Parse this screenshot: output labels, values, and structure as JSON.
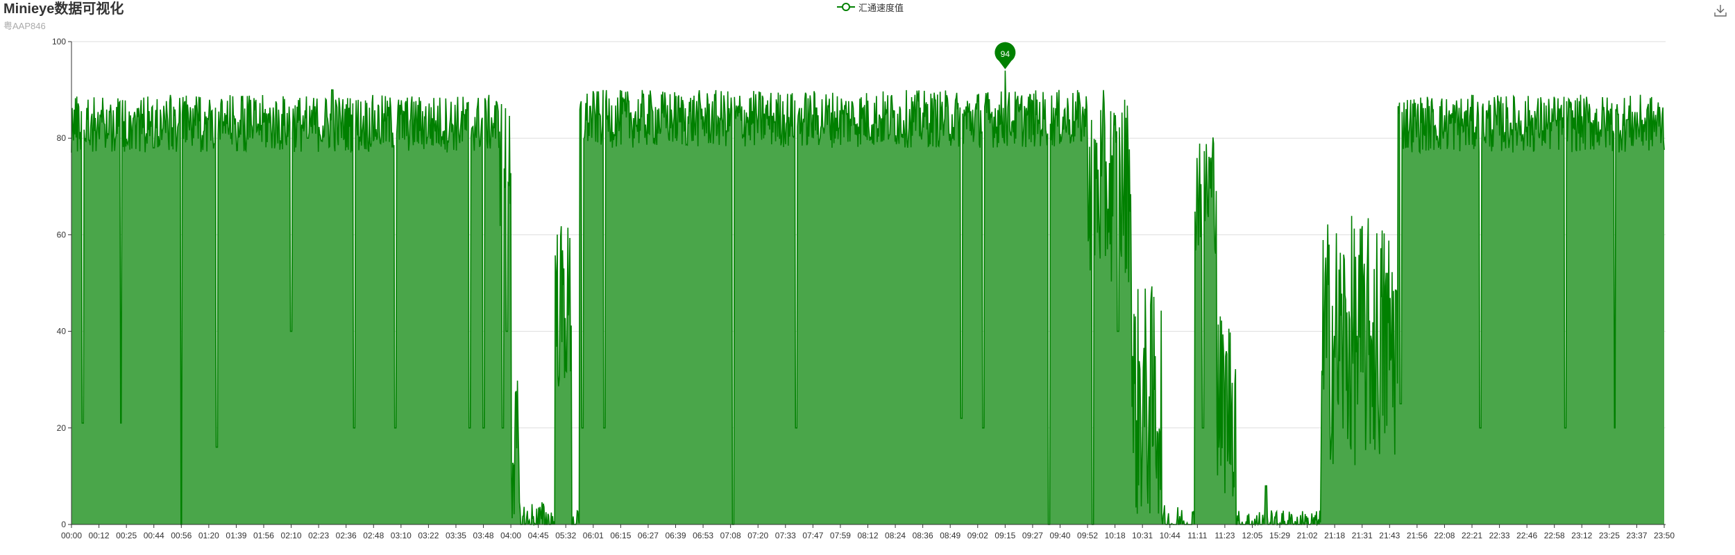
{
  "title": "Minieye数据可视化",
  "subtitle": "粤AAP846",
  "colors": {
    "line": "#008000",
    "area": "#4aa64a",
    "grid": "#dddddd",
    "axis": "#333333"
  },
  "toolbox": {
    "icon": "download-icon"
  },
  "chart_data": {
    "type": "area",
    "title": "Minieye数据可视化",
    "subtitle": "粤AAP846",
    "legend": {
      "items": [
        "汇通速度值"
      ],
      "placement": "top-center"
    },
    "xlabel": "",
    "ylabel": "",
    "ylim": [
      0,
      100
    ],
    "yticks": [
      0,
      20,
      40,
      60,
      80,
      100
    ],
    "grid": true,
    "xticks": [
      "00:00",
      "00:12",
      "00:25",
      "00:44",
      "00:56",
      "01:20",
      "01:39",
      "01:56",
      "02:10",
      "02:23",
      "02:36",
      "02:48",
      "03:10",
      "03:22",
      "03:35",
      "03:48",
      "04:00",
      "04:45",
      "05:32",
      "06:01",
      "06:15",
      "06:27",
      "06:39",
      "06:53",
      "07:08",
      "07:20",
      "07:33",
      "07:47",
      "07:59",
      "08:12",
      "08:24",
      "08:36",
      "08:49",
      "09:02",
      "09:15",
      "09:27",
      "09:40",
      "09:52",
      "10:18",
      "10:31",
      "10:44",
      "11:11",
      "11:23",
      "12:05",
      "15:29",
      "21:02",
      "21:18",
      "21:31",
      "21:43",
      "21:56",
      "22:08",
      "22:21",
      "22:33",
      "22:46",
      "22:58",
      "23:12",
      "23:25",
      "23:37",
      "23:50"
    ],
    "mark_point": {
      "label": "94",
      "value": 94,
      "tick_index": 34
    },
    "series": [
      {
        "name": "汇通速度值",
        "segments": [
          {
            "from": 0,
            "to": 15.6,
            "level": 83,
            "spread": 6,
            "dips": [
              [
                0.4,
                21
              ],
              [
                1.8,
                21
              ],
              [
                3.0,
                78
              ],
              [
                4.0,
                0
              ],
              [
                5.3,
                16
              ],
              [
                8.0,
                40
              ],
              [
                8.6,
                80
              ],
              [
                9.5,
                90
              ],
              [
                10.3,
                20
              ],
              [
                11.8,
                20
              ],
              [
                14.5,
                20
              ],
              [
                15.0,
                20
              ]
            ]
          },
          {
            "from": 15.6,
            "to": 16.0,
            "level": 75,
            "spread": 14,
            "dips": [
              [
                15.7,
                20
              ],
              [
                15.85,
                40
              ]
            ]
          },
          {
            "from": 16.0,
            "to": 16.3,
            "level": 15,
            "spread": 15
          },
          {
            "from": 16.3,
            "to": 17.6,
            "level": 0,
            "spread": 5
          },
          {
            "from": 17.6,
            "to": 18.2,
            "level": 45,
            "spread": 18
          },
          {
            "from": 18.2,
            "to": 18.5,
            "level": 0,
            "spread": 3
          },
          {
            "from": 18.5,
            "to": 37.0,
            "level": 84,
            "spread": 6,
            "dips": [
              [
                18.6,
                20
              ],
              [
                19.4,
                20
              ],
              [
                24.1,
                0
              ],
              [
                26.4,
                20
              ],
              [
                32.4,
                22
              ],
              [
                33.2,
                20
              ],
              [
                35.6,
                0
              ]
            ]
          },
          {
            "from": 37.0,
            "to": 38.6,
            "level": 70,
            "spread": 20,
            "dips": [
              [
                37.2,
                0
              ],
              [
                38.1,
                40
              ]
            ]
          },
          {
            "from": 38.6,
            "to": 39.7,
            "level": 25,
            "spread": 25
          },
          {
            "from": 39.7,
            "to": 40.9,
            "level": 0,
            "spread": 4
          },
          {
            "from": 40.9,
            "to": 41.7,
            "level": 70,
            "spread": 14,
            "dips": [
              [
                41.2,
                20
              ]
            ]
          },
          {
            "from": 41.7,
            "to": 42.4,
            "level": 25,
            "spread": 20
          },
          {
            "from": 42.4,
            "to": 45.5,
            "level": 0,
            "spread": 3,
            "dips": [
              [
                43.5,
                8
              ]
            ]
          },
          {
            "from": 45.5,
            "to": 48.3,
            "level": 38,
            "spread": 26
          },
          {
            "from": 48.3,
            "to": 58.6,
            "level": 83,
            "spread": 6,
            "dips": [
              [
                48.4,
                25
              ],
              [
                51.3,
                20
              ],
              [
                54.4,
                20
              ],
              [
                56.2,
                20
              ]
            ]
          }
        ]
      }
    ]
  }
}
